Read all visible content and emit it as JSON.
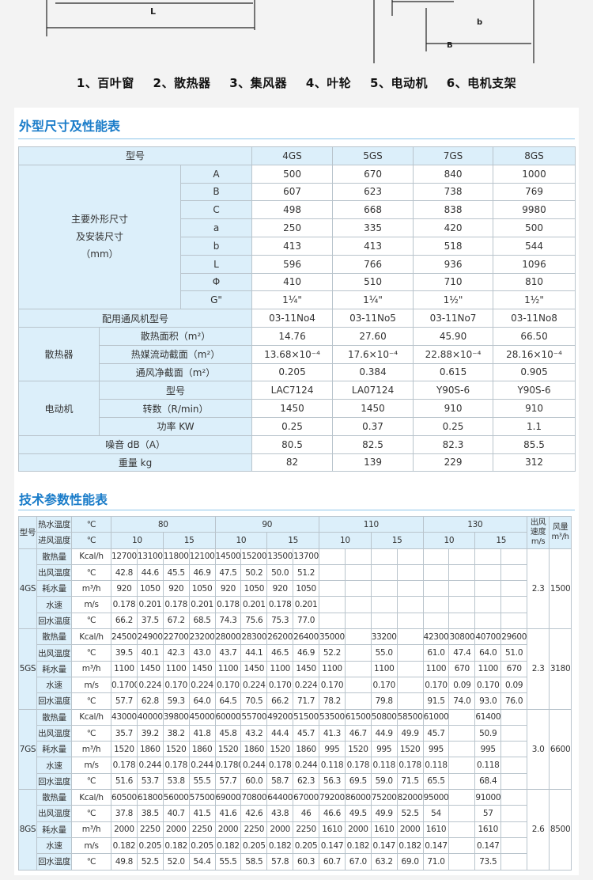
{
  "diagram": {
    "dim_L": "L",
    "dim_b": "b",
    "dim_B": "B"
  },
  "legend": [
    "1、百叶窗",
    "2、散热器",
    "3、集风器",
    "4、叶轮",
    "5、电动机",
    "6、电机支架"
  ],
  "section1": {
    "title": "外型尺寸及性能表",
    "header": {
      "label": "型号",
      "models": [
        "4GS",
        "5GS",
        "7GS",
        "8GS"
      ]
    },
    "dimensions": {
      "group_label": [
        "主要外形尺寸",
        "及安装尺寸",
        "（mm）"
      ],
      "rows": [
        {
          "label": "A",
          "values": [
            "500",
            "670",
            "840",
            "1000"
          ]
        },
        {
          "label": "B",
          "values": [
            "607",
            "623",
            "738",
            "769"
          ]
        },
        {
          "label": "C",
          "values": [
            "498",
            "668",
            "838",
            "9980"
          ]
        },
        {
          "label": "a",
          "values": [
            "250",
            "335",
            "420",
            "500"
          ]
        },
        {
          "label": "b",
          "values": [
            "413",
            "413",
            "518",
            "544"
          ]
        },
        {
          "label": "L",
          "values": [
            "596",
            "766",
            "936",
            "1096"
          ]
        },
        {
          "label": "Φ",
          "values": [
            "410",
            "510",
            "710",
            "810"
          ]
        },
        {
          "label": "G\"",
          "values": [
            "1¼\"",
            "1¼\"",
            "1½\"",
            "1½\""
          ]
        }
      ]
    },
    "fan": {
      "label": "配用通风机型号",
      "values": [
        "03-11No4",
        "03-11No5",
        "03-11No7",
        "03-11No8"
      ]
    },
    "radiator": {
      "group_label": "散热器",
      "rows": [
        {
          "label": "散热面积（m²）",
          "values": [
            "14.76",
            "27.60",
            "45.90",
            "66.50"
          ]
        },
        {
          "label": "热媒流动截面（m²）",
          "values": [
            "13.68×10⁻⁴",
            "17.6×10⁻⁴",
            "22.88×10⁻⁴",
            "28.16×10⁻⁴"
          ]
        },
        {
          "label": "通风净截面（m²）",
          "values": [
            "0.205",
            "0.384",
            "0.615",
            "0.905"
          ]
        }
      ]
    },
    "motor": {
      "group_label": "电动机",
      "rows": [
        {
          "label": "型号",
          "values": [
            "LAC7124",
            "LA07124",
            "Y90S-6",
            "Y90S-6"
          ]
        },
        {
          "label": "转数（R/min）",
          "values": [
            "1450",
            "1450",
            "910",
            "910"
          ]
        },
        {
          "label": "功率 KW",
          "values": [
            "0.25",
            "0.37",
            "0.25",
            "1.1"
          ]
        }
      ]
    },
    "noise": {
      "label": "噪音 dB（A）",
      "values": [
        "80.5",
        "82.5",
        "82.3",
        "85.5"
      ]
    },
    "weight": {
      "label": "重量 kg",
      "values": [
        "82",
        "139",
        "229",
        "312"
      ]
    }
  },
  "section2": {
    "title": "技术参数性能表",
    "header": {
      "model": "型号",
      "hot_water": "热水温度",
      "inlet_air": "进风温度",
      "unit": "℃",
      "water_temps": [
        "80",
        "90",
        "110",
        "130"
      ],
      "air_temps": [
        "10",
        "15",
        "10",
        "15",
        "10",
        "15",
        "10",
        "15"
      ],
      "speed": "出风速度m/s",
      "flow": "风量m³/h"
    },
    "models": [
      {
        "name": "4GS",
        "speed": "2.3",
        "flow": "1500",
        "rows": [
          {
            "label": "散热量",
            "unit": "Kcal/h",
            "values": [
              "12700",
              "13100",
              "11800",
              "12100",
              "14500",
              "15200",
              "13500",
              "13700",
              "",
              "",
              "",
              "",
              "",
              "",
              "",
              ""
            ]
          },
          {
            "label": "出风温度",
            "unit": "℃",
            "values": [
              "42.8",
              "44.6",
              "45.5",
              "46.9",
              "47.5",
              "50.2",
              "50.0",
              "51.2",
              "",
              "",
              "",
              "",
              "",
              "",
              "",
              ""
            ]
          },
          {
            "label": "耗水量",
            "unit": "m³/h",
            "values": [
              "920",
              "1050",
              "920",
              "1050",
              "920",
              "1050",
              "920",
              "1050",
              "",
              "",
              "",
              "",
              "",
              "",
              "",
              ""
            ]
          },
          {
            "label": "水速",
            "unit": "m/s",
            "values": [
              "0.178",
              "0.201",
              "0.178",
              "0.201",
              "0.178",
              "0.201",
              "0.178",
              "0.201",
              "",
              "",
              "",
              "",
              "",
              "",
              "",
              ""
            ]
          },
          {
            "label": "回水温度",
            "unit": "℃",
            "values": [
              "66.2",
              "37.5",
              "67.2",
              "68.5",
              "74.3",
              "75.6",
              "75.3",
              "77.0",
              "",
              "",
              "",
              "",
              "",
              "",
              "",
              ""
            ]
          }
        ]
      },
      {
        "name": "5GS",
        "speed": "2.3",
        "flow": "3180",
        "rows": [
          {
            "label": "散热量",
            "unit": "Kcal/h",
            "values": [
              "24500",
              "24900",
              "22700",
              "23200",
              "28000",
              "28300",
              "26200",
              "26400",
              "35000",
              "",
              "33200",
              "",
              "42300",
              "30800",
              "40700",
              "29600"
            ]
          },
          {
            "label": "出风温度",
            "unit": "℃",
            "values": [
              "39.5",
              "40.1",
              "42.3",
              "43.0",
              "43.7",
              "44.1",
              "46.5",
              "46.9",
              "52.2",
              "",
              "55.0",
              "",
              "61.0",
              "47.4",
              "64.0",
              "51.0"
            ]
          },
          {
            "label": "耗水量",
            "unit": "m³/h",
            "values": [
              "1100",
              "1450",
              "1100",
              "1450",
              "1100",
              "1450",
              "1100",
              "1450",
              "1100",
              "",
              "1100",
              "",
              "1100",
              "670",
              "1100",
              "670"
            ]
          },
          {
            "label": "水速",
            "unit": "m/s",
            "values": [
              "0.1700",
              "0.224",
              "0.170",
              "0.224",
              "0.170",
              "0.224",
              "0.170",
              "0.224",
              "0.170",
              "",
              "0.170",
              "",
              "0.170",
              "0.09",
              "0.170",
              "0.09"
            ]
          },
          {
            "label": "回水温度",
            "unit": "℃",
            "values": [
              "57.7",
              "62.8",
              "59.3",
              "64.0",
              "64.5",
              "70.5",
              "66.2",
              "71.7",
              "78.2",
              "",
              "79.8",
              "",
              "91.5",
              "74.0",
              "93.0",
              "76.0"
            ]
          }
        ]
      },
      {
        "name": "7GS",
        "speed": "3.0",
        "flow": "6600",
        "rows": [
          {
            "label": "散热量",
            "unit": "Kcal/h",
            "values": [
              "43000",
              "40000",
              "39800",
              "45000",
              "60000",
              "55700",
              "49200",
              "51500",
              "53500",
              "61500",
              "50800",
              "58500",
              "61000",
              "",
              "61400",
              ""
            ]
          },
          {
            "label": "出风温度",
            "unit": "℃",
            "values": [
              "35.7",
              "39.2",
              "38.2",
              "41.8",
              "45.8",
              "43.2",
              "44.4",
              "45.7",
              "41.3",
              "46.7",
              "44.9",
              "49.9",
              "45.7",
              "",
              "50.9",
              ""
            ]
          },
          {
            "label": "耗水量",
            "unit": "m³/h",
            "values": [
              "1520",
              "1860",
              "1520",
              "1860",
              "1520",
              "1860",
              "1520",
              "1860",
              "995",
              "1520",
              "995",
              "1520",
              "995",
              "",
              "995",
              ""
            ]
          },
          {
            "label": "水速",
            "unit": "m/s",
            "values": [
              "0.178",
              "0.244",
              "0.178",
              "0.244",
              "0.1780",
              "0.244",
              "0.178",
              "0.244",
              "0.118",
              "0.178",
              "0.118",
              "0.178",
              "0.118",
              "",
              "0.118",
              ""
            ]
          },
          {
            "label": "回水温度",
            "unit": "℃",
            "values": [
              "51.6",
              "53.7",
              "53.8",
              "55.5",
              "57.7",
              "60.0",
              "58.7",
              "62.3",
              "56.3",
              "69.5",
              "59.0",
              "71.5",
              "65.5",
              "",
              "68.4",
              ""
            ]
          }
        ]
      },
      {
        "name": "8GS",
        "speed": "2.6",
        "flow": "8500",
        "rows": [
          {
            "label": "散热量",
            "unit": "Kcal/h",
            "values": [
              "60500",
              "61800",
              "56000",
              "57500",
              "69000",
              "70800",
              "64400",
              "67000",
              "79200",
              "86000",
              "75200",
              "82000",
              "95000",
              "",
              "91000",
              ""
            ]
          },
          {
            "label": "出风温度",
            "unit": "℃",
            "values": [
              "37.8",
              "38.5",
              "40.7",
              "41.5",
              "41.6",
              "42.6",
              "43.8",
              "46",
              "46.6",
              "49.5",
              "49.9",
              "52.5",
              "54",
              "",
              "57",
              ""
            ]
          },
          {
            "label": "耗水量",
            "unit": "m³/h",
            "values": [
              "2000",
              "2250",
              "2000",
              "2250",
              "2000",
              "2250",
              "2000",
              "2250",
              "1610",
              "2000",
              "1610",
              "2000",
              "1610",
              "",
              "1610",
              ""
            ]
          },
          {
            "label": "水速",
            "unit": "m/s",
            "values": [
              "0.182",
              "0.205",
              "0.182",
              "0.205",
              "0.182",
              "0.205",
              "0.182",
              "0.205",
              "0.147",
              "0.182",
              "0.147",
              "0.182",
              "0.147",
              "",
              "0.147",
              ""
            ]
          },
          {
            "label": "回水温度",
            "unit": "℃",
            "values": [
              "49.8",
              "52.5",
              "52.0",
              "54.4",
              "55.5",
              "58.5",
              "57.8",
              "60.3",
              "60.7",
              "67.0",
              "63.2",
              "69.0",
              "71.0",
              "",
              "73.5",
              ""
            ]
          }
        ]
      }
    ]
  }
}
